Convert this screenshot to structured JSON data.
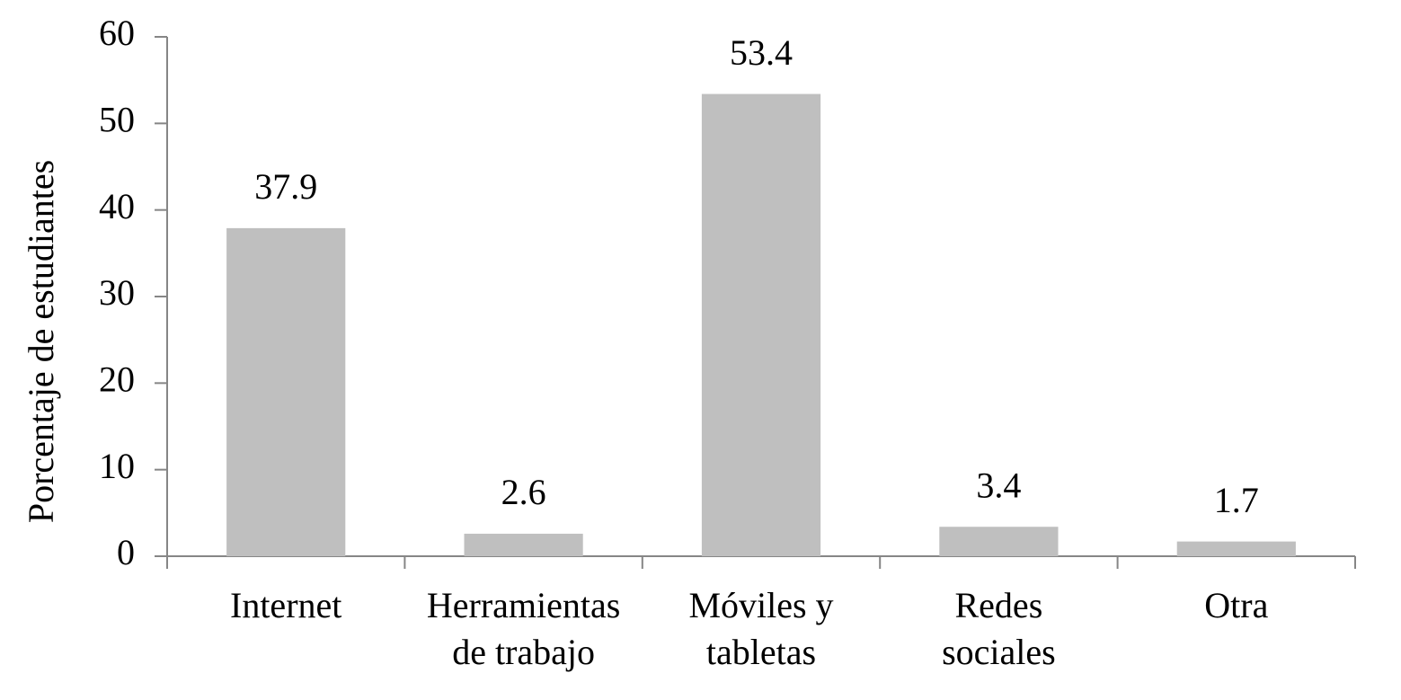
{
  "chart_data": {
    "type": "bar",
    "y_label": "Porcentaje de estudiantes",
    "categories": [
      "Internet",
      "Herramientas\nde trabajo",
      "Móviles y\ntabletas",
      "Redes\nsociales",
      "Otra"
    ],
    "values": [
      37.9,
      2.6,
      53.4,
      3.4,
      1.7
    ],
    "color": "#bfbfbf",
    "ylim": [
      0,
      60
    ],
    "yticks": [
      0,
      10,
      20,
      30,
      40,
      50,
      60
    ],
    "grid": false
  }
}
